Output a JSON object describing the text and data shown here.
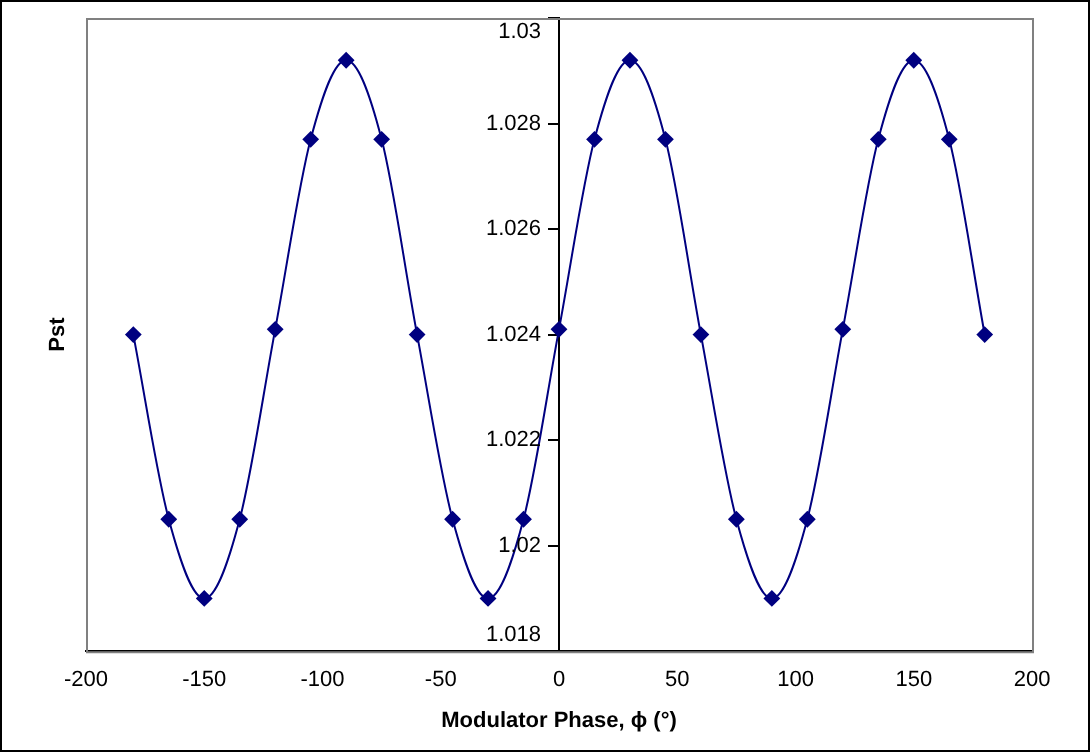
{
  "chart_data": {
    "type": "line",
    "xlabel": "Modulator Phase, ϕ (°)",
    "ylabel": "Pst",
    "x": [
      -180,
      -165,
      -150,
      -135,
      -120,
      -105,
      -90,
      -75,
      -60,
      -45,
      -30,
      -15,
      0,
      15,
      30,
      45,
      60,
      75,
      90,
      105,
      120,
      135,
      150,
      165,
      180
    ],
    "series": [
      {
        "color": "#000080",
        "values": [
          1.024,
          1.0205,
          1.019,
          1.0205,
          1.0241,
          1.0277,
          1.0292,
          1.0277,
          1.024,
          1.0205,
          1.019,
          1.0205,
          1.0241,
          1.0277,
          1.0292,
          1.0277,
          1.024,
          1.0205,
          1.019,
          1.0205,
          1.0241,
          1.0277,
          1.0292,
          1.0277,
          1.024
        ]
      }
    ],
    "xlim": [
      -200,
      200
    ],
    "xticks": [
      -200,
      -150,
      -100,
      -50,
      0,
      50,
      100,
      150,
      200
    ],
    "ylim": [
      1.018,
      1.03
    ],
    "yticks": [
      1.018,
      1.02,
      1.022,
      1.024,
      1.026,
      1.028,
      1.03
    ],
    "grid": false,
    "legend": false,
    "marker": "diamond",
    "line_style": "solid"
  }
}
